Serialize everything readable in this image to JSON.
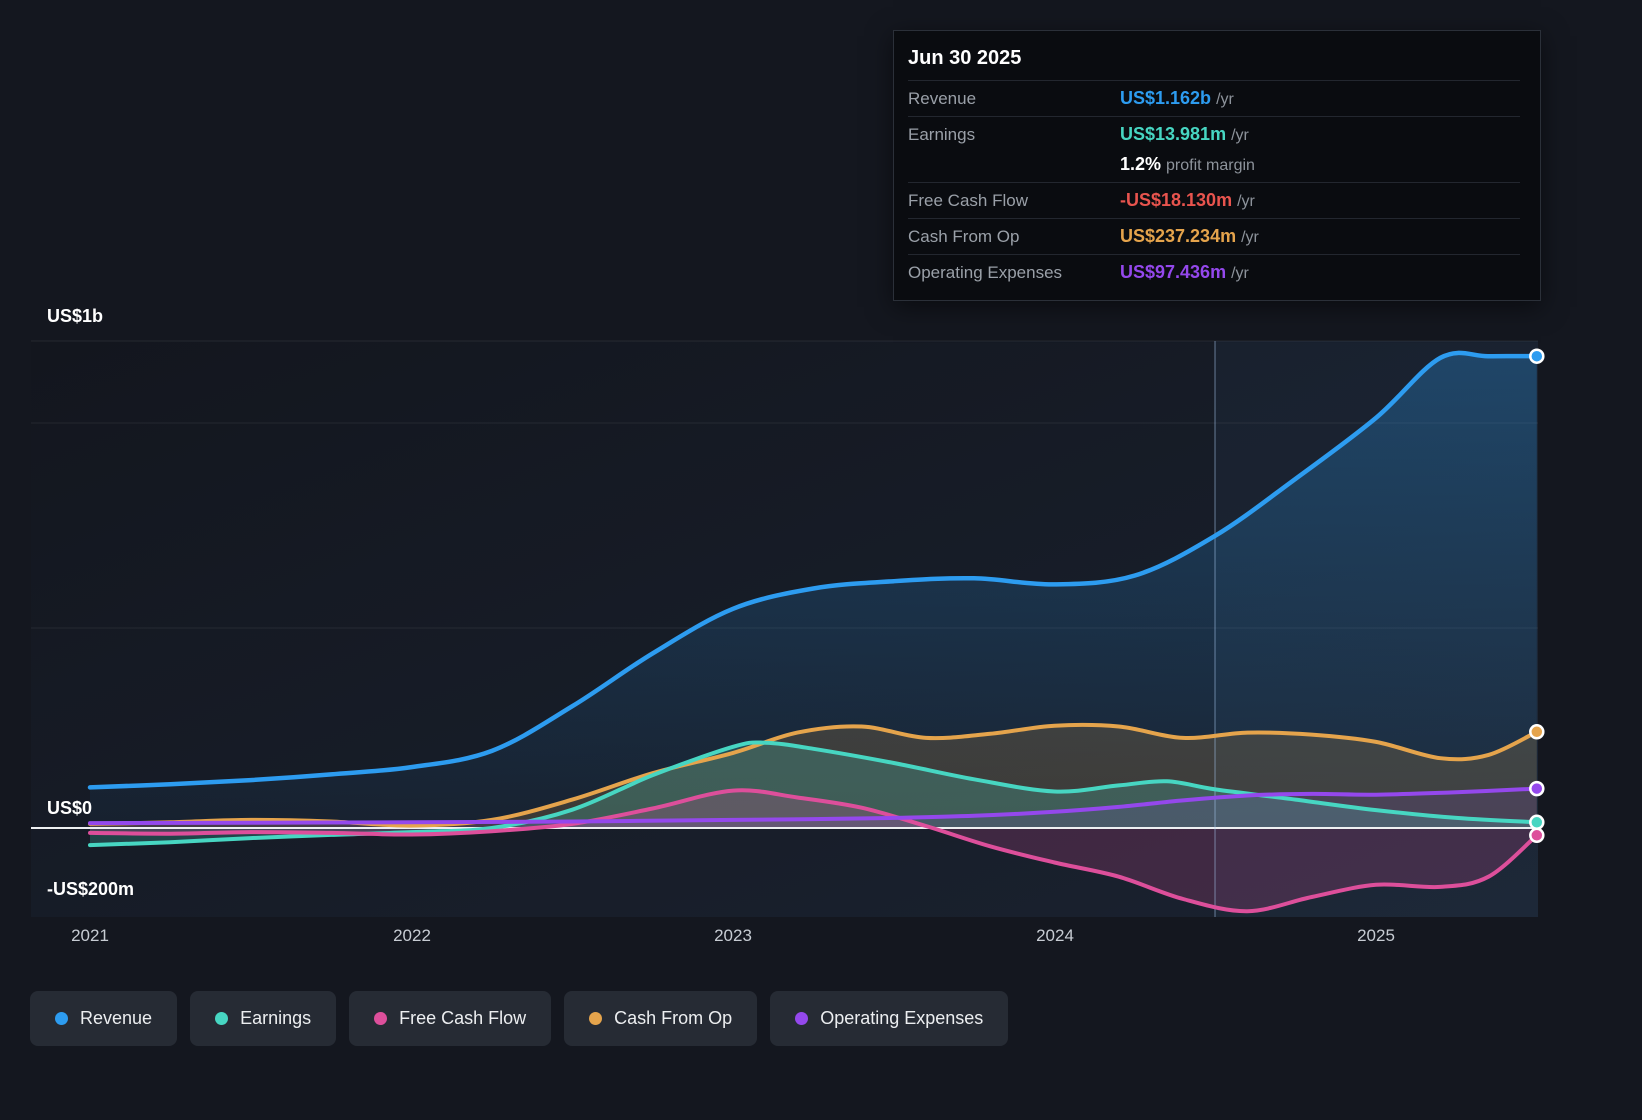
{
  "tooltip": {
    "date": "Jun 30 2025",
    "rows": [
      {
        "label": "Revenue",
        "value": "US$1.162b",
        "suffix": "/yr",
        "color": "#2d9cf0"
      },
      {
        "label": "Earnings",
        "value": "US$13.981m",
        "suffix": "/yr",
        "color": "#47d6c2"
      },
      {
        "label": "",
        "value": "1.2%",
        "suffix": "profit margin",
        "color": "#ffffff"
      },
      {
        "label": "Free Cash Flow",
        "value": "-US$18.130m",
        "suffix": "/yr",
        "color": "#e8544e"
      },
      {
        "label": "Cash From Op",
        "value": "US$237.234m",
        "suffix": "/yr",
        "color": "#e5a44c"
      },
      {
        "label": "Operating Expenses",
        "value": "US$97.436m",
        "suffix": "/yr",
        "color": "#9448ec"
      }
    ]
  },
  "legend": {
    "items": [
      {
        "label": "Revenue",
        "color": "#2d9cf0"
      },
      {
        "label": "Earnings",
        "color": "#47d6c2"
      },
      {
        "label": "Free Cash Flow",
        "color": "#dd4f9b"
      },
      {
        "label": "Cash From Op",
        "color": "#e5a44c"
      },
      {
        "label": "Operating Expenses",
        "color": "#9448ec"
      }
    ]
  },
  "chart_data": {
    "type": "area",
    "unit": "US$ millions per year",
    "xlim": [
      2021,
      2025.5
    ],
    "ylim": [
      -250,
      1200
    ],
    "x_ticks": [
      "2021",
      "2022",
      "2023",
      "2024",
      "2025"
    ],
    "x_tick_values": [
      2021,
      2022,
      2023,
      2024,
      2025
    ],
    "y_ticks": [
      {
        "value": 1000,
        "label": "US$1b"
      },
      {
        "value": 0,
        "label": "US$0"
      },
      {
        "value": -200,
        "label": "-US$200m"
      }
    ],
    "marker_x": 2024.5,
    "series": [
      {
        "id": "revenue",
        "name": "Revenue",
        "color": "#2d9cf0",
        "gradient": true,
        "fill_opacity": 0.3,
        "x": [
          2021,
          2021.25,
          2021.5,
          2021.75,
          2022,
          2022.25,
          2022.5,
          2022.75,
          2023,
          2023.25,
          2023.5,
          2023.75,
          2024,
          2024.25,
          2024.5,
          2024.75,
          2025,
          2025.2,
          2025.35,
          2025.5
        ],
        "values": [
          100,
          108,
          118,
          132,
          150,
          190,
          300,
          430,
          540,
          590,
          608,
          615,
          600,
          622,
          720,
          860,
          1010,
          1158,
          1162,
          1162
        ]
      },
      {
        "id": "cash-from-op",
        "name": "Cash From Op",
        "color": "#e5a44c",
        "gradient": false,
        "fill_opacity": 0.18,
        "x": [
          2021,
          2021.25,
          2021.5,
          2021.75,
          2022,
          2022.25,
          2022.5,
          2022.75,
          2023,
          2023.2,
          2023.4,
          2023.6,
          2023.8,
          2024,
          2024.2,
          2024.4,
          2024.6,
          2024.8,
          2025,
          2025.2,
          2025.35,
          2025.5
        ],
        "values": [
          10,
          14,
          20,
          16,
          6,
          20,
          70,
          135,
          185,
          235,
          250,
          222,
          232,
          252,
          250,
          222,
          235,
          230,
          212,
          172,
          180,
          237
        ]
      },
      {
        "id": "earnings",
        "name": "Earnings",
        "color": "#47d6c2",
        "gradient": false,
        "fill_opacity": 0.22,
        "x": [
          2021,
          2021.25,
          2021.5,
          2021.75,
          2022,
          2022.25,
          2022.5,
          2022.75,
          2023,
          2023.1,
          2023.25,
          2023.5,
          2023.75,
          2024,
          2024.2,
          2024.35,
          2024.5,
          2024.75,
          2025,
          2025.25,
          2025.5
        ],
        "values": [
          -42,
          -35,
          -25,
          -17,
          -10,
          0,
          45,
          130,
          200,
          210,
          195,
          160,
          120,
          90,
          105,
          115,
          95,
          70,
          44,
          25,
          14
        ]
      },
      {
        "id": "free-cash-flow",
        "name": "Free Cash Flow",
        "color": "#dd4f9b",
        "gradient": false,
        "fill_opacity": 0.2,
        "x": [
          2021,
          2021.25,
          2021.5,
          2021.75,
          2022,
          2022.25,
          2022.5,
          2022.75,
          2023,
          2023.2,
          2023.4,
          2023.6,
          2023.8,
          2024,
          2024.2,
          2024.4,
          2024.6,
          2024.8,
          2025,
          2025.2,
          2025.35,
          2025.5
        ],
        "values": [
          -12,
          -14,
          -10,
          -12,
          -16,
          -8,
          10,
          48,
          92,
          75,
          50,
          5,
          -45,
          -85,
          -120,
          -175,
          -205,
          -170,
          -140,
          -145,
          -120,
          -18
        ]
      },
      {
        "id": "operating-expenses",
        "name": "Operating Expenses",
        "color": "#9448ec",
        "gradient": false,
        "fill_opacity": 0.12,
        "x": [
          2021,
          2021.5,
          2022,
          2022.5,
          2023,
          2023.25,
          2023.5,
          2023.75,
          2024,
          2024.2,
          2024.4,
          2024.6,
          2024.8,
          2025,
          2025.25,
          2025.5
        ],
        "values": [
          12,
          13,
          14,
          16,
          20,
          22,
          25,
          30,
          40,
          52,
          68,
          80,
          84,
          82,
          88,
          97
        ]
      }
    ]
  }
}
